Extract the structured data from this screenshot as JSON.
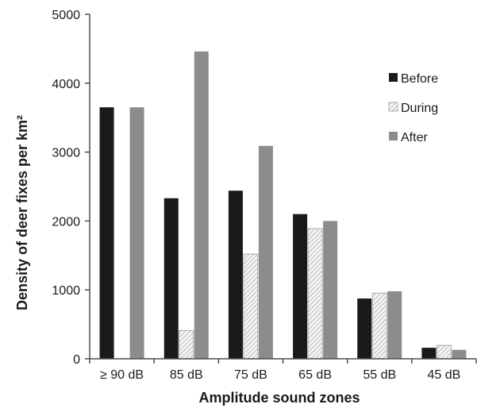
{
  "chart_data": {
    "type": "bar",
    "title": "",
    "xlabel": "Amplitude sound zones",
    "ylabel": "Density of deer fixes per km²",
    "categories": [
      "≥ 90 dB",
      "85 dB",
      "75 dB",
      "65 dB",
      "55 dB",
      "45 dB"
    ],
    "ylim": [
      0,
      5000
    ],
    "yticks": [
      0,
      1000,
      2000,
      3000,
      4000,
      5000
    ],
    "grid": false,
    "legend_position": "top-right",
    "series": [
      {
        "name": "Before",
        "values": [
          3650,
          2330,
          2440,
          2100,
          875,
          160
        ],
        "color": "#1a1a1a",
        "pattern": "solid"
      },
      {
        "name": "During",
        "values": [
          0,
          410,
          1520,
          1890,
          955,
          195
        ],
        "color": "#f2f2f2",
        "pattern": "hatched"
      },
      {
        "name": "After",
        "values": [
          3650,
          4460,
          3090,
          2000,
          980,
          130
        ],
        "color": "#8c8c8c",
        "pattern": "solid"
      }
    ]
  }
}
